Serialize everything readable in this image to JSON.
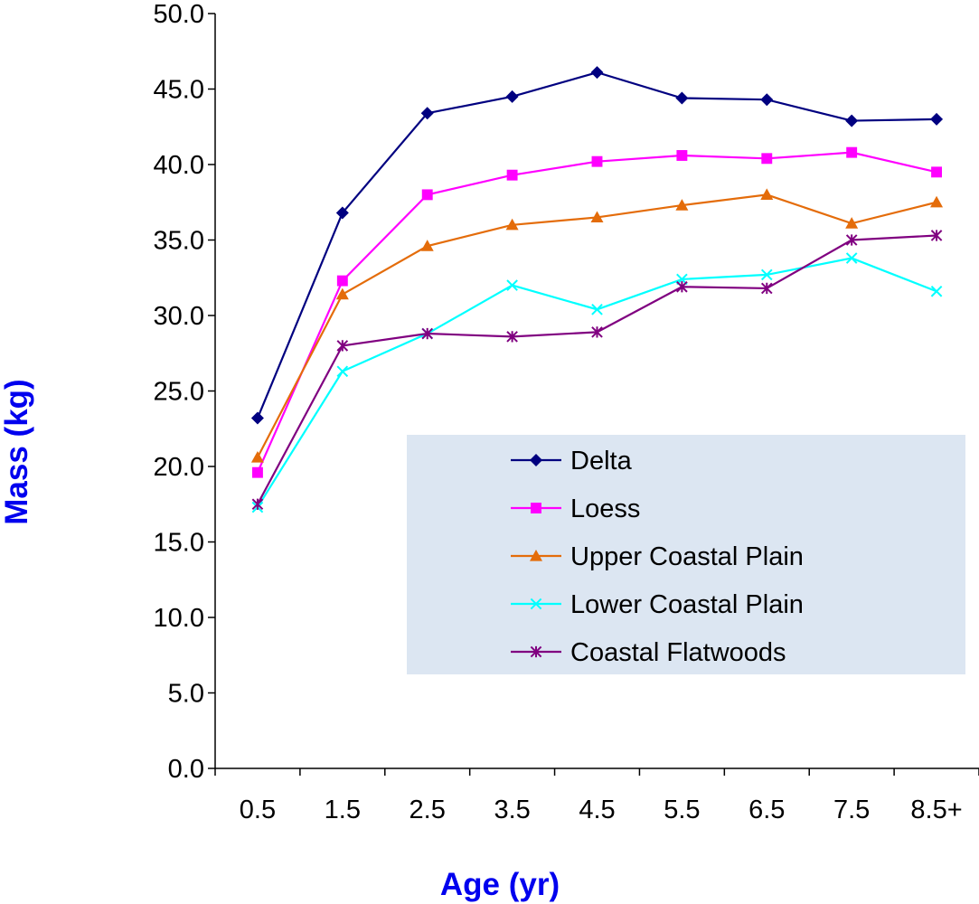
{
  "chart_data": {
    "type": "line",
    "title": "",
    "xlabel": "Age (yr)",
    "ylabel": "Mass (kg)",
    "categories": [
      "0.5",
      "1.5",
      "2.5",
      "3.5",
      "4.5",
      "5.5",
      "6.5",
      "7.5",
      "8.5+"
    ],
    "ylim": [
      0,
      50
    ],
    "ytick_step": 5,
    "ytick_labels": [
      "0.0",
      "5.0",
      "10.0",
      "15.0",
      "20.0",
      "25.0",
      "30.0",
      "35.0",
      "40.0",
      "45.0",
      "50.0"
    ],
    "grid": false,
    "legend_position": "center-right",
    "legend_background": "#dce6f2",
    "series": [
      {
        "name": "Delta",
        "color": "#000080",
        "marker": "diamond",
        "values": [
          23.2,
          36.8,
          43.4,
          44.5,
          46.1,
          44.4,
          44.3,
          42.9,
          43.0
        ]
      },
      {
        "name": "Loess",
        "color": "#ff00ff",
        "marker": "square",
        "values": [
          19.6,
          32.3,
          38.0,
          39.3,
          40.2,
          40.6,
          40.4,
          40.8,
          39.5
        ]
      },
      {
        "name": "Upper Coastal Plain",
        "color": "#e46c0a",
        "marker": "triangle",
        "values": [
          20.6,
          31.4,
          34.6,
          36.0,
          36.5,
          37.3,
          38.0,
          36.1,
          37.5
        ]
      },
      {
        "name": "Lower Coastal Plain",
        "color": "#00ffff",
        "marker": "x",
        "values": [
          17.3,
          26.3,
          28.8,
          32.0,
          30.4,
          32.4,
          32.7,
          33.8,
          31.6
        ]
      },
      {
        "name": "Coastal Flatwoods",
        "color": "#800080",
        "marker": "asterisk",
        "values": [
          17.5,
          28.0,
          28.8,
          28.6,
          28.9,
          31.9,
          31.8,
          35.0,
          35.3
        ]
      }
    ]
  }
}
